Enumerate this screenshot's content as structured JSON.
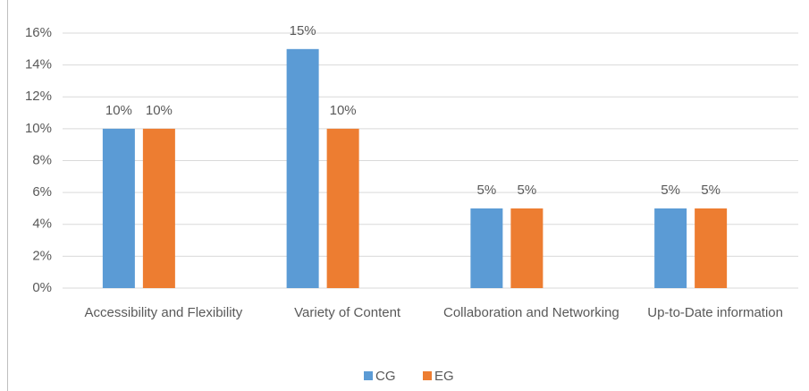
{
  "chart_data": {
    "type": "bar",
    "categories": [
      "Accessibility and Flexibility",
      "Variety of Content",
      "Collaboration and Networking",
      "Up-to-Date information"
    ],
    "series": [
      {
        "name": "CG",
        "color": "#5b9bd5",
        "values": [
          10,
          15,
          5,
          5
        ],
        "value_labels": [
          "10%",
          "15%",
          "5%",
          "5%"
        ]
      },
      {
        "name": "EG",
        "color": "#ed7d31",
        "values": [
          10,
          10,
          5,
          5
        ],
        "value_labels": [
          "10%",
          "10%",
          "5%",
          "5%"
        ]
      }
    ],
    "ylim": [
      0,
      16
    ],
    "yticks": [
      {
        "value": 0,
        "label": "0%"
      },
      {
        "value": 2,
        "label": "2%"
      },
      {
        "value": 4,
        "label": "4%"
      },
      {
        "value": 6,
        "label": "6%"
      },
      {
        "value": 8,
        "label": "8%"
      },
      {
        "value": 10,
        "label": "10%"
      },
      {
        "value": 12,
        "label": "12%"
      },
      {
        "value": 14,
        "label": "14%"
      },
      {
        "value": 16,
        "label": "16%"
      }
    ],
    "grid": true,
    "legend": "bottom"
  }
}
